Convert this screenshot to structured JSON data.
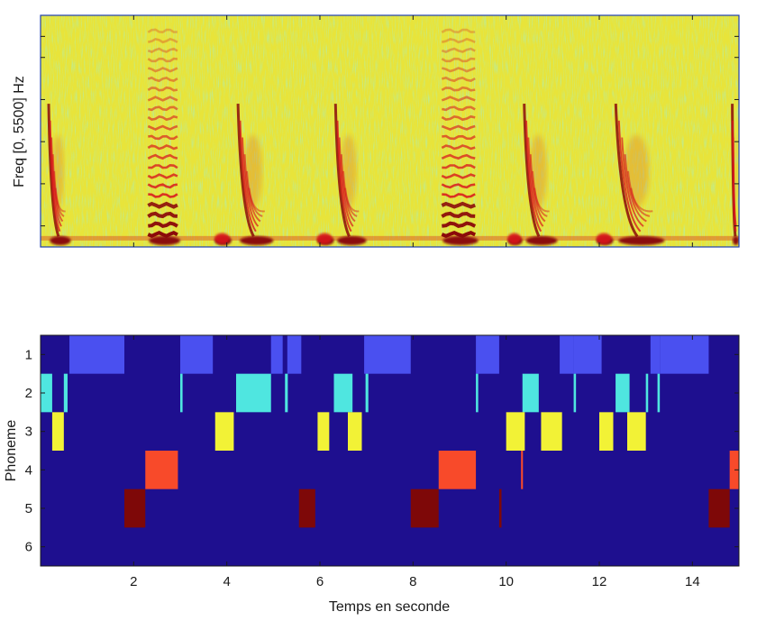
{
  "chart_data": [
    {
      "type": "heatmap",
      "kind": "spectrogram",
      "xlabel": "",
      "ylabel": "Freq [0, 5500] Hz",
      "xlim": [
        0,
        15
      ],
      "ylim": [
        0,
        5500
      ],
      "x_tick_values": [
        2,
        4,
        6,
        8,
        10,
        12,
        14
      ],
      "x_tick_labels_shown": false,
      "y_tick_labels_shown": false,
      "colormap": "jet",
      "colors": {
        "background": "#e8e43a",
        "low": "#5fe6b0",
        "high": "#d8141c",
        "peak": "#8b0a0a",
        "frame": "#1f3fb0"
      },
      "voiced_segments": [
        {
          "start": 0.15,
          "end": 0.65,
          "intensity": "high",
          "pattern": "curve"
        },
        {
          "start": 2.25,
          "end": 3.0,
          "intensity": "high",
          "pattern": "harmonics"
        },
        {
          "start": 3.7,
          "end": 4.1,
          "intensity": "medium",
          "pattern": "low"
        },
        {
          "start": 4.2,
          "end": 5.0,
          "intensity": "high",
          "pattern": "curve"
        },
        {
          "start": 5.9,
          "end": 6.3,
          "intensity": "medium",
          "pattern": "low"
        },
        {
          "start": 6.3,
          "end": 7.0,
          "intensity": "high",
          "pattern": "curve"
        },
        {
          "start": 8.55,
          "end": 9.4,
          "intensity": "high",
          "pattern": "harmonics"
        },
        {
          "start": 10.0,
          "end": 10.35,
          "intensity": "medium",
          "pattern": "low"
        },
        {
          "start": 10.35,
          "end": 11.1,
          "intensity": "high",
          "pattern": "curve"
        },
        {
          "start": 11.9,
          "end": 12.3,
          "intensity": "medium",
          "pattern": "low"
        },
        {
          "start": 12.3,
          "end": 13.4,
          "intensity": "high",
          "pattern": "curve"
        },
        {
          "start": 14.85,
          "end": 15.0,
          "intensity": "medium",
          "pattern": "curve"
        }
      ]
    },
    {
      "type": "heatmap",
      "kind": "phoneme-activation",
      "xlabel": "Temps en seconde",
      "ylabel": "Phoneme",
      "xlim": [
        0,
        15
      ],
      "x_ticks": [
        2,
        4,
        6,
        8,
        10,
        12,
        14
      ],
      "y_ticks": [
        1,
        2,
        3,
        4,
        5,
        6
      ],
      "colors": {
        "background": "#1e0f8f",
        "1": "#4a50f0",
        "2": "#4fe6e0",
        "3": "#f2f236",
        "4": "#f84a2a",
        "5": "#7e0808"
      },
      "segments": [
        {
          "phoneme": 1,
          "start": 0.62,
          "end": 1.8
        },
        {
          "phoneme": 1,
          "start": 3.0,
          "end": 3.7
        },
        {
          "phoneme": 1,
          "start": 4.95,
          "end": 5.2
        },
        {
          "phoneme": 1,
          "start": 5.3,
          "end": 5.6
        },
        {
          "phoneme": 1,
          "start": 6.95,
          "end": 7.95
        },
        {
          "phoneme": 1,
          "start": 9.35,
          "end": 9.85
        },
        {
          "phoneme": 1,
          "start": 11.15,
          "end": 11.45
        },
        {
          "phoneme": 1,
          "start": 11.45,
          "end": 12.05
        },
        {
          "phoneme": 1,
          "start": 13.1,
          "end": 13.3
        },
        {
          "phoneme": 1,
          "start": 13.3,
          "end": 14.35
        },
        {
          "phoneme": 2,
          "start": 0.0,
          "end": 0.25
        },
        {
          "phoneme": 2,
          "start": 0.5,
          "end": 0.58
        },
        {
          "phoneme": 2,
          "start": 3.0,
          "end": 3.05
        },
        {
          "phoneme": 2,
          "start": 4.2,
          "end": 4.95
        },
        {
          "phoneme": 2,
          "start": 5.25,
          "end": 5.31
        },
        {
          "phoneme": 2,
          "start": 6.3,
          "end": 6.7
        },
        {
          "phoneme": 2,
          "start": 6.98,
          "end": 7.04
        },
        {
          "phoneme": 2,
          "start": 9.35,
          "end": 9.4
        },
        {
          "phoneme": 2,
          "start": 10.35,
          "end": 10.7
        },
        {
          "phoneme": 2,
          "start": 11.45,
          "end": 11.5
        },
        {
          "phoneme": 2,
          "start": 12.35,
          "end": 12.65
        },
        {
          "phoneme": 2,
          "start": 13.0,
          "end": 13.05
        },
        {
          "phoneme": 2,
          "start": 13.25,
          "end": 13.3
        },
        {
          "phoneme": 3,
          "start": 0.25,
          "end": 0.5
        },
        {
          "phoneme": 3,
          "start": 3.75,
          "end": 4.15
        },
        {
          "phoneme": 3,
          "start": 5.95,
          "end": 6.2
        },
        {
          "phoneme": 3,
          "start": 6.6,
          "end": 6.9
        },
        {
          "phoneme": 3,
          "start": 10.0,
          "end": 10.4
        },
        {
          "phoneme": 3,
          "start": 10.75,
          "end": 11.2
        },
        {
          "phoneme": 3,
          "start": 12.0,
          "end": 12.3
        },
        {
          "phoneme": 3,
          "start": 12.6,
          "end": 13.0
        },
        {
          "phoneme": 4,
          "start": 2.25,
          "end": 2.95
        },
        {
          "phoneme": 4,
          "start": 8.55,
          "end": 9.35
        },
        {
          "phoneme": 4,
          "start": 10.32,
          "end": 10.36
        },
        {
          "phoneme": 4,
          "start": 14.8,
          "end": 15.0
        },
        {
          "phoneme": 5,
          "start": 1.8,
          "end": 2.25
        },
        {
          "phoneme": 5,
          "start": 5.55,
          "end": 5.9
        },
        {
          "phoneme": 5,
          "start": 7.95,
          "end": 8.55
        },
        {
          "phoneme": 5,
          "start": 9.85,
          "end": 9.9
        },
        {
          "phoneme": 5,
          "start": 14.35,
          "end": 14.8
        }
      ]
    }
  ]
}
